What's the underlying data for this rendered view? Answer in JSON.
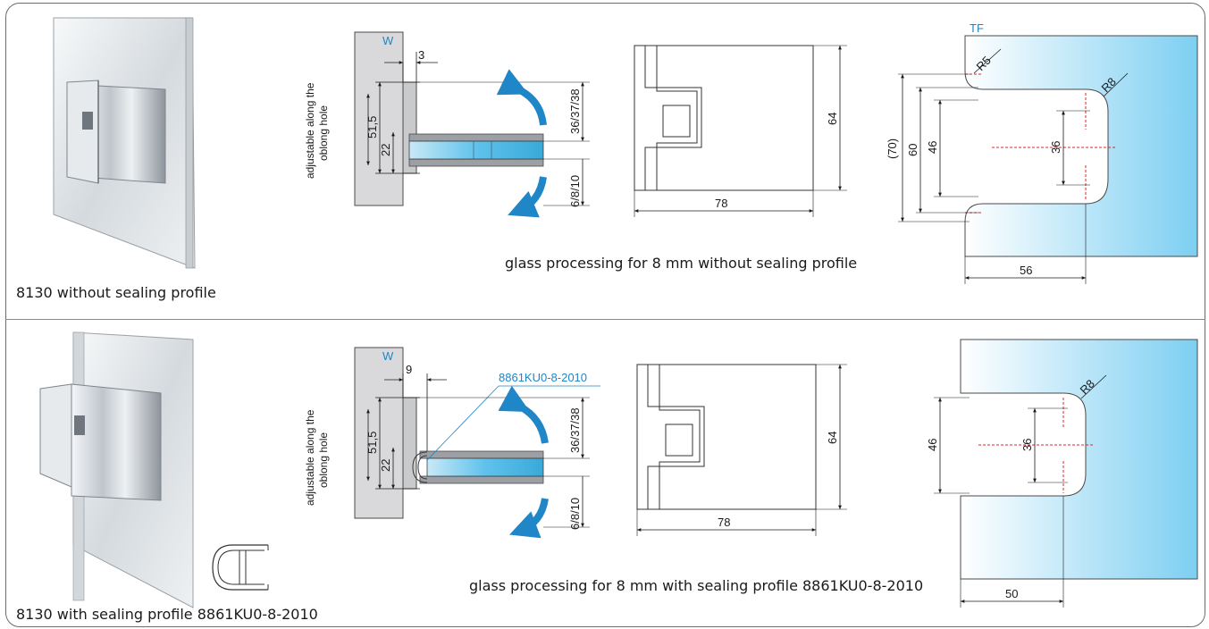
{
  "top": {
    "product_caption": "8130 without sealing profile",
    "wall_label": "W",
    "side_label_line1": "adjustable along the",
    "side_label_line2": "oblong hole",
    "dim_offset": "3",
    "dim_height": "51,5",
    "dim_22": "22",
    "dim_glass_top": "36/37/38",
    "dim_glass_bottom": "6/8/10",
    "front_height": "64",
    "front_width": "78",
    "processing_caption": "glass processing for 8 mm without sealing profile",
    "tf_label": "TF",
    "r5_label": "R5",
    "r8_label": "R8",
    "dim_70": "(70)",
    "dim_60": "60",
    "dim_46": "46",
    "dim_36": "36",
    "dim_56": "56"
  },
  "bottom": {
    "product_caption": "8130 with sealing profile 8861KU0-8-2010",
    "wall_label": "W",
    "side_label_line1": "adjustable along the",
    "side_label_line2": "oblong hole",
    "dim_offset": "9",
    "seal_label": "8861KU0-8-2010",
    "dim_height": "51,5",
    "dim_22": "22",
    "dim_glass_top": "36/37/38",
    "dim_glass_bottom": "6/8/10",
    "front_height": "64",
    "front_width": "78",
    "processing_caption": "glass processing for 8 mm with sealing profile 8861KU0-8-2010",
    "r8_label": "R8",
    "dim_46": "46",
    "dim_36": "36",
    "dim_50": "50"
  },
  "colors": {
    "glass_gradient_start": "#ffffff",
    "glass_gradient_end": "#7dcff2",
    "arrow_blue": "#1f86c8",
    "wall_gray": "#d9d9db",
    "centerline_red": "#e0242a"
  },
  "icons": [
    "hinge-photo",
    "rotation-arrow-icon",
    "seal-profile-icon"
  ]
}
